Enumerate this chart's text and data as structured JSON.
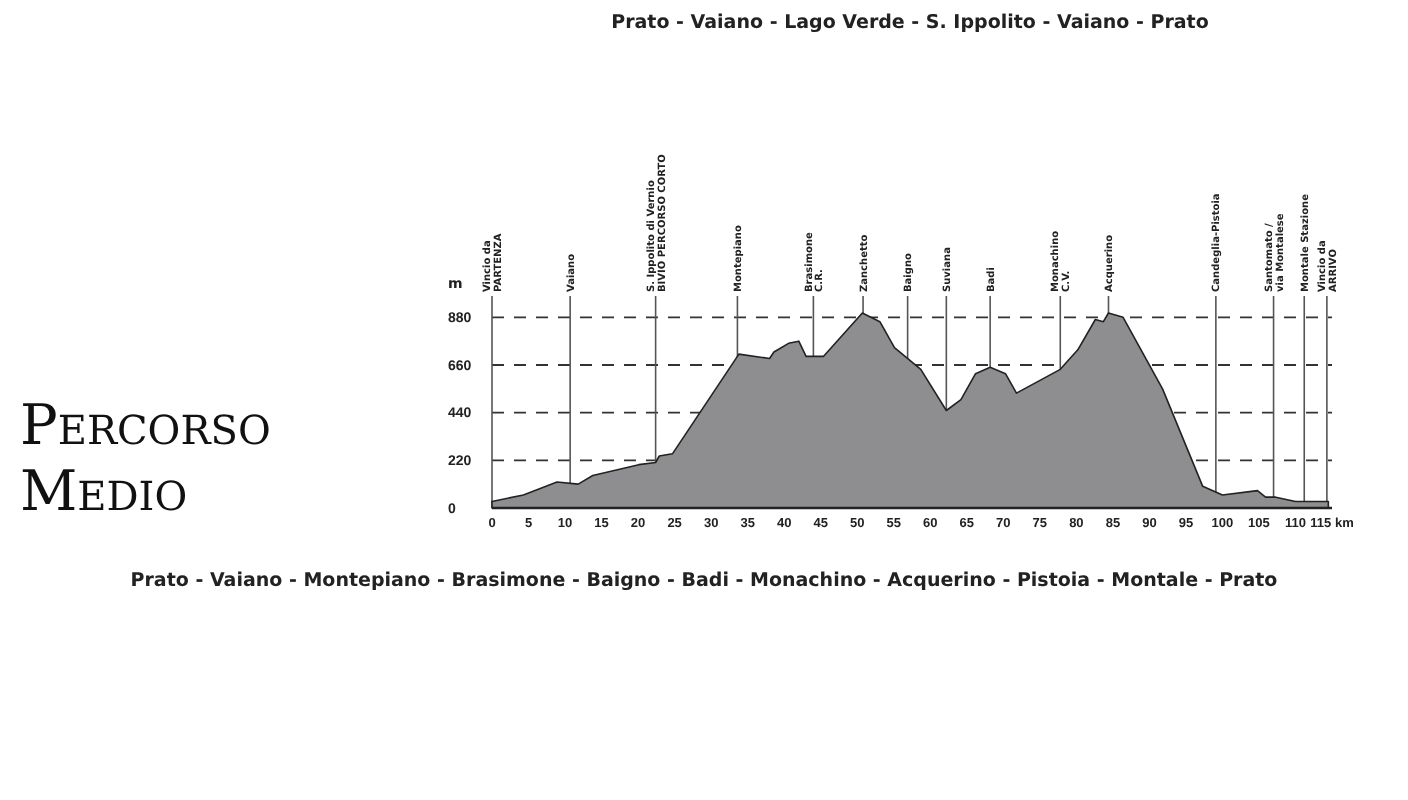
{
  "chart_data": {
    "type": "area",
    "title": "Percorso Medio",
    "subtitle": "Prato - Vaiano - Montepiano - Brasimone - Baigno - Badi - Monachino - Acquerino - Pistoia - Montale - Prato",
    "ylabel": "m",
    "annotations": [
      "Prato - Vaiano - Lago Verde - S. Ippolito - Vaiano - Prato"
    ],
    "series": [
      {
        "color": "#8e8e90",
        "x": [
          0,
          4.3,
          8.9,
          11.8,
          13.8,
          20.1,
          22.4,
          22.9,
          24.7,
          33.8,
          38,
          38.6,
          40.6,
          42,
          43,
          45.4,
          50.7,
          53.1,
          55.1,
          58.7,
          62.2,
          64.2,
          66.2,
          68.2,
          70.3,
          71.8,
          77.8,
          80.2,
          82.6,
          83.7,
          84.4,
          86.4,
          91.8,
          97.3,
          100,
          104.8,
          105.9,
          107.3,
          110,
          114.5
        ],
        "values": [
          30,
          60,
          120,
          110,
          150,
          200,
          210,
          240,
          250,
          710,
          690,
          720,
          760,
          770,
          700,
          700,
          900,
          860,
          740,
          640,
          450,
          500,
          620,
          650,
          620,
          530,
          640,
          730,
          870,
          860,
          900,
          880,
          550,
          100,
          60,
          80,
          50,
          50,
          30,
          30
        ]
      }
    ],
    "xlim": [
      0,
      115
    ],
    "ylim": [
      0,
      960
    ],
    "xticks": [
      0,
      5,
      10,
      15,
      20,
      25,
      30,
      35,
      40,
      45,
      50,
      55,
      60,
      65,
      70,
      75,
      80,
      85,
      90,
      95,
      100,
      105,
      110,
      {
        "value": 115,
        "label": "115 km"
      }
    ],
    "yticks": [
      0,
      220,
      440,
      660,
      880
    ],
    "grid": "y",
    "line_style": "dashed",
    "ref_lines": [
      {
        "axis": "x",
        "value": 0,
        "label": "Vincio da\nPARTENZA"
      },
      {
        "axis": "x",
        "value": 10.7,
        "label": "Vaiano"
      },
      {
        "axis": "x",
        "value": 22.4,
        "label": "S. Ippolito di Vernio\nBIVIO PERCORSO CORTO"
      },
      {
        "axis": "x",
        "value": 33.6,
        "label": "Montepiano"
      },
      {
        "axis": "x",
        "value": 44,
        "label": "Brasimone\nC.R."
      },
      {
        "axis": "x",
        "value": 50.8,
        "label": "Zanchetto"
      },
      {
        "axis": "x",
        "value": 56.9,
        "label": "Baigno"
      },
      {
        "axis": "x",
        "value": 62.2,
        "label": "Suviana"
      },
      {
        "axis": "x",
        "value": 68.2,
        "label": "Badi"
      },
      {
        "axis": "x",
        "value": 77.8,
        "label": "Monachino\nC.V."
      },
      {
        "axis": "x",
        "value": 84.4,
        "label": "Acquerino"
      },
      {
        "axis": "x",
        "value": 99.1,
        "label": "Candeglia-Pistoia"
      },
      {
        "axis": "x",
        "value": 107,
        "label": "Santomato /\nvia Montalese"
      },
      {
        "axis": "x",
        "value": 111.2,
        "label": "Montale Stazione"
      },
      {
        "axis": "x",
        "value": 114.3,
        "label": "Vincio da\nARRIVO"
      }
    ]
  }
}
